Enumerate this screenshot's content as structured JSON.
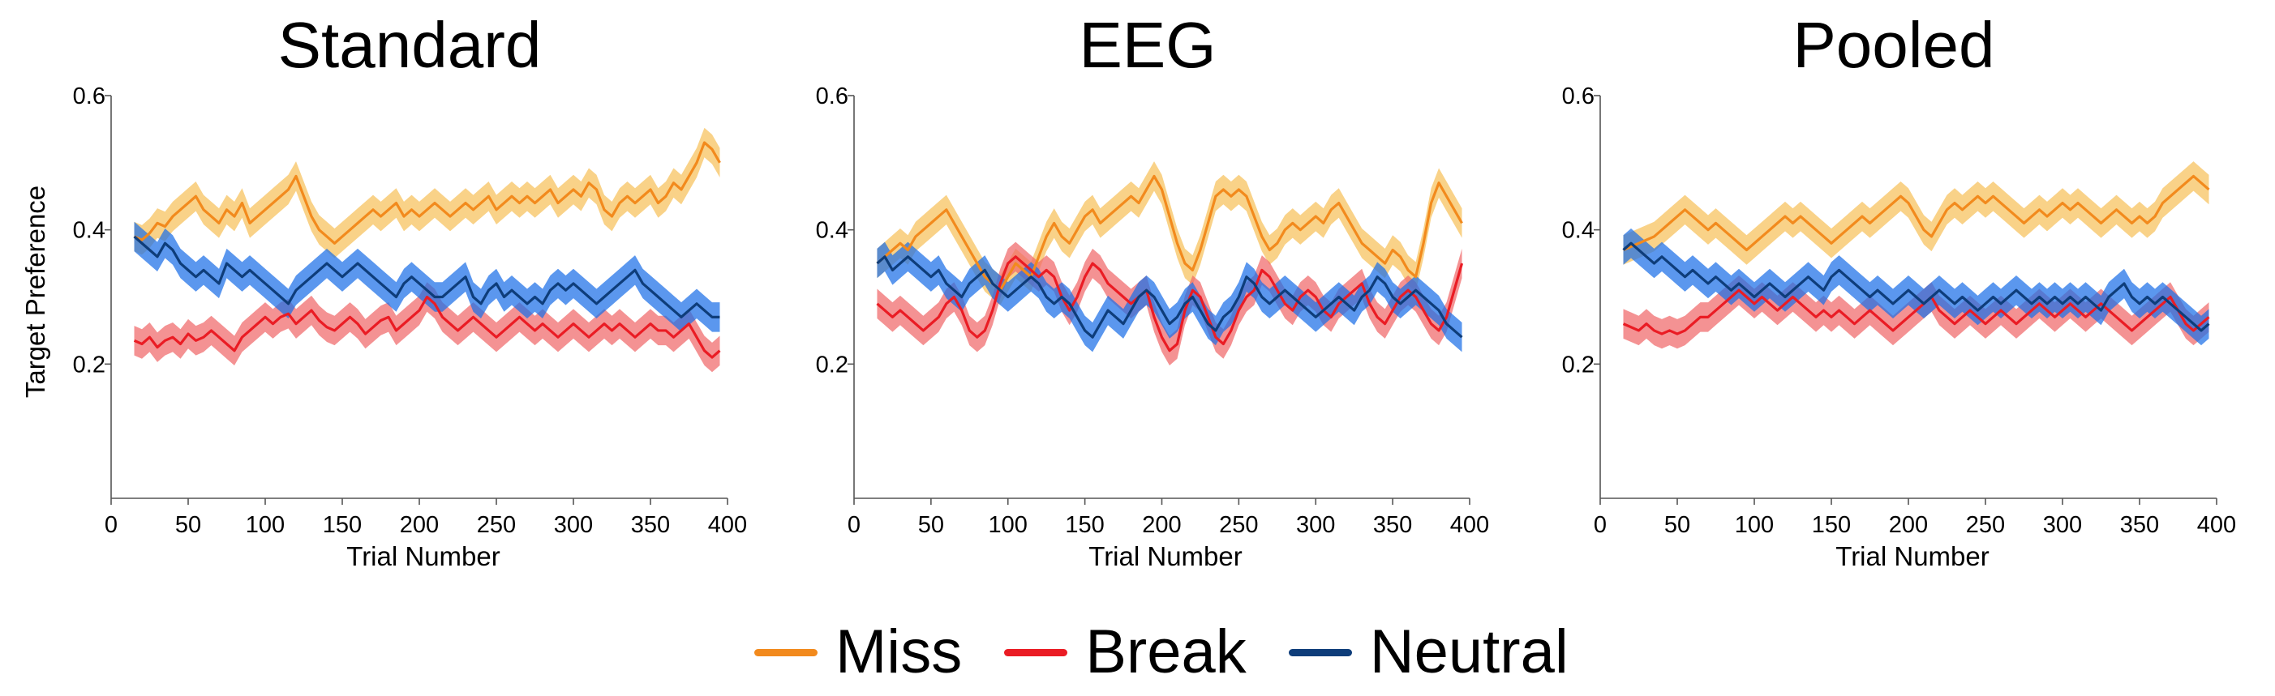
{
  "figure": {
    "ylabel": "Target Preference",
    "xlabel": "Trial Number",
    "legend": [
      {
        "name": "Miss",
        "color": "#f28a1d"
      },
      {
        "name": "Break",
        "color": "#ea1c24"
      },
      {
        "name": "Neutral",
        "color": "#0e3d7a"
      }
    ]
  },
  "panels": [
    {
      "title": "Standard"
    },
    {
      "title": "EEG"
    },
    {
      "title": "Pooled"
    }
  ],
  "chart_data": [
    {
      "type": "line",
      "title": "Standard",
      "xlabel": "Trial Number",
      "ylabel": "Target Preference",
      "xlim": [
        0,
        400
      ],
      "ylim": [
        0,
        0.6
      ],
      "xticks": [
        0,
        50,
        100,
        150,
        200,
        250,
        300,
        350,
        400
      ],
      "yticks": [
        0.2,
        0.4,
        0.6
      ],
      "grid": false,
      "x": [
        15,
        20,
        25,
        30,
        35,
        40,
        45,
        50,
        55,
        60,
        65,
        70,
        75,
        80,
        85,
        90,
        95,
        100,
        105,
        110,
        115,
        120,
        125,
        130,
        135,
        140,
        145,
        150,
        155,
        160,
        165,
        170,
        175,
        180,
        185,
        190,
        195,
        200,
        205,
        210,
        215,
        220,
        225,
        230,
        235,
        240,
        245,
        250,
        255,
        260,
        265,
        270,
        275,
        280,
        285,
        290,
        295,
        300,
        305,
        310,
        315,
        320,
        325,
        330,
        335,
        340,
        345,
        350,
        355,
        360,
        365,
        370,
        375,
        380,
        385,
        390,
        395
      ],
      "series": [
        {
          "name": "Miss",
          "color": "#f28a1d",
          "band_color": "#f7c05a",
          "values": [
            0.39,
            0.385,
            0.395,
            0.41,
            0.405,
            0.42,
            0.43,
            0.44,
            0.45,
            0.43,
            0.42,
            0.41,
            0.43,
            0.42,
            0.44,
            0.41,
            0.42,
            0.43,
            0.44,
            0.45,
            0.46,
            0.48,
            0.45,
            0.42,
            0.4,
            0.39,
            0.38,
            0.39,
            0.4,
            0.41,
            0.42,
            0.43,
            0.42,
            0.43,
            0.44,
            0.42,
            0.43,
            0.42,
            0.43,
            0.44,
            0.43,
            0.42,
            0.43,
            0.44,
            0.43,
            0.44,
            0.45,
            0.43,
            0.44,
            0.45,
            0.44,
            0.45,
            0.44,
            0.45,
            0.46,
            0.44,
            0.45,
            0.46,
            0.45,
            0.47,
            0.46,
            0.43,
            0.42,
            0.44,
            0.45,
            0.44,
            0.45,
            0.46,
            0.44,
            0.45,
            0.47,
            0.46,
            0.48,
            0.5,
            0.53,
            0.52,
            0.5
          ]
        },
        {
          "name": "Break",
          "color": "#ea1c24",
          "band_color": "#f0686a",
          "values": [
            0.235,
            0.23,
            0.24,
            0.225,
            0.235,
            0.24,
            0.23,
            0.245,
            0.235,
            0.24,
            0.25,
            0.24,
            0.23,
            0.22,
            0.24,
            0.25,
            0.26,
            0.27,
            0.26,
            0.27,
            0.275,
            0.26,
            0.27,
            0.28,
            0.265,
            0.255,
            0.25,
            0.26,
            0.27,
            0.26,
            0.245,
            0.255,
            0.265,
            0.27,
            0.25,
            0.26,
            0.27,
            0.28,
            0.3,
            0.29,
            0.27,
            0.26,
            0.25,
            0.26,
            0.27,
            0.26,
            0.25,
            0.24,
            0.25,
            0.26,
            0.27,
            0.26,
            0.25,
            0.26,
            0.25,
            0.24,
            0.25,
            0.26,
            0.25,
            0.24,
            0.25,
            0.26,
            0.25,
            0.26,
            0.25,
            0.24,
            0.25,
            0.26,
            0.25,
            0.25,
            0.24,
            0.25,
            0.26,
            0.24,
            0.22,
            0.21,
            0.22
          ]
        },
        {
          "name": "Neutral",
          "color": "#0e3d7a",
          "band_color": "#1c6fe8",
          "values": [
            0.39,
            0.38,
            0.37,
            0.36,
            0.38,
            0.37,
            0.35,
            0.34,
            0.33,
            0.34,
            0.33,
            0.32,
            0.35,
            0.34,
            0.33,
            0.34,
            0.33,
            0.32,
            0.31,
            0.3,
            0.29,
            0.31,
            0.32,
            0.33,
            0.34,
            0.35,
            0.34,
            0.33,
            0.34,
            0.35,
            0.34,
            0.33,
            0.32,
            0.31,
            0.3,
            0.32,
            0.33,
            0.32,
            0.31,
            0.3,
            0.3,
            0.31,
            0.32,
            0.33,
            0.3,
            0.29,
            0.31,
            0.32,
            0.3,
            0.31,
            0.3,
            0.29,
            0.3,
            0.29,
            0.31,
            0.32,
            0.31,
            0.32,
            0.31,
            0.3,
            0.29,
            0.3,
            0.31,
            0.32,
            0.33,
            0.34,
            0.32,
            0.31,
            0.3,
            0.29,
            0.28,
            0.27,
            0.28,
            0.29,
            0.28,
            0.27,
            0.27
          ]
        }
      ]
    },
    {
      "type": "line",
      "title": "EEG",
      "xlabel": "Trial Number",
      "ylabel": "",
      "xlim": [
        0,
        400
      ],
      "ylim": [
        0,
        0.6
      ],
      "xticks": [
        0,
        50,
        100,
        150,
        200,
        250,
        300,
        350,
        400
      ],
      "yticks": [
        0.2,
        0.4,
        0.6
      ],
      "grid": false,
      "x": [
        15,
        20,
        25,
        30,
        35,
        40,
        45,
        50,
        55,
        60,
        65,
        70,
        75,
        80,
        85,
        90,
        95,
        100,
        105,
        110,
        115,
        120,
        125,
        130,
        135,
        140,
        145,
        150,
        155,
        160,
        165,
        170,
        175,
        180,
        185,
        190,
        195,
        200,
        205,
        210,
        215,
        220,
        225,
        230,
        235,
        240,
        245,
        250,
        255,
        260,
        265,
        270,
        275,
        280,
        285,
        290,
        295,
        300,
        305,
        310,
        315,
        320,
        325,
        330,
        335,
        340,
        345,
        350,
        355,
        360,
        365,
        370,
        375,
        380,
        385,
        390,
        395
      ],
      "series": [
        {
          "name": "Miss",
          "color": "#f28a1d",
          "band_color": "#f7c05a",
          "values": [
            0.35,
            0.36,
            0.37,
            0.38,
            0.37,
            0.39,
            0.4,
            0.41,
            0.42,
            0.43,
            0.41,
            0.39,
            0.37,
            0.35,
            0.33,
            0.32,
            0.31,
            0.33,
            0.35,
            0.34,
            0.33,
            0.36,
            0.39,
            0.41,
            0.39,
            0.38,
            0.4,
            0.42,
            0.43,
            0.41,
            0.42,
            0.43,
            0.44,
            0.45,
            0.44,
            0.46,
            0.48,
            0.46,
            0.42,
            0.38,
            0.35,
            0.34,
            0.37,
            0.41,
            0.45,
            0.46,
            0.45,
            0.46,
            0.45,
            0.42,
            0.39,
            0.37,
            0.38,
            0.4,
            0.41,
            0.4,
            0.41,
            0.42,
            0.41,
            0.43,
            0.44,
            0.42,
            0.4,
            0.38,
            0.37,
            0.36,
            0.35,
            0.37,
            0.36,
            0.34,
            0.33,
            0.38,
            0.44,
            0.47,
            0.45,
            0.43,
            0.41
          ]
        },
        {
          "name": "Break",
          "color": "#ea1c24",
          "band_color": "#f0686a",
          "values": [
            0.29,
            0.28,
            0.27,
            0.28,
            0.27,
            0.26,
            0.25,
            0.26,
            0.27,
            0.29,
            0.3,
            0.28,
            0.25,
            0.24,
            0.25,
            0.28,
            0.32,
            0.35,
            0.36,
            0.35,
            0.34,
            0.33,
            0.34,
            0.33,
            0.3,
            0.28,
            0.3,
            0.33,
            0.35,
            0.34,
            0.32,
            0.31,
            0.3,
            0.29,
            0.3,
            0.31,
            0.27,
            0.24,
            0.22,
            0.23,
            0.28,
            0.31,
            0.3,
            0.27,
            0.24,
            0.23,
            0.25,
            0.28,
            0.3,
            0.31,
            0.34,
            0.33,
            0.31,
            0.29,
            0.28,
            0.3,
            0.31,
            0.3,
            0.28,
            0.27,
            0.29,
            0.3,
            0.31,
            0.32,
            0.29,
            0.27,
            0.26,
            0.28,
            0.3,
            0.31,
            0.3,
            0.28,
            0.26,
            0.25,
            0.27,
            0.31,
            0.35
          ]
        },
        {
          "name": "Neutral",
          "color": "#0e3d7a",
          "band_color": "#1c6fe8",
          "values": [
            0.35,
            0.36,
            0.34,
            0.35,
            0.36,
            0.35,
            0.34,
            0.33,
            0.34,
            0.32,
            0.31,
            0.3,
            0.32,
            0.33,
            0.34,
            0.32,
            0.31,
            0.3,
            0.31,
            0.32,
            0.33,
            0.32,
            0.3,
            0.29,
            0.3,
            0.29,
            0.27,
            0.25,
            0.24,
            0.26,
            0.28,
            0.27,
            0.26,
            0.28,
            0.3,
            0.31,
            0.3,
            0.28,
            0.26,
            0.27,
            0.29,
            0.3,
            0.28,
            0.26,
            0.25,
            0.27,
            0.28,
            0.3,
            0.33,
            0.32,
            0.3,
            0.29,
            0.3,
            0.31,
            0.3,
            0.29,
            0.28,
            0.27,
            0.28,
            0.29,
            0.3,
            0.29,
            0.28,
            0.3,
            0.31,
            0.33,
            0.32,
            0.3,
            0.29,
            0.3,
            0.31,
            0.3,
            0.29,
            0.28,
            0.26,
            0.25,
            0.24
          ]
        }
      ]
    },
    {
      "type": "line",
      "title": "Pooled",
      "xlabel": "Trial Number",
      "ylabel": "",
      "xlim": [
        0,
        400
      ],
      "ylim": [
        0,
        0.6
      ],
      "xticks": [
        0,
        50,
        100,
        150,
        200,
        250,
        300,
        350,
        400
      ],
      "yticks": [
        0.2,
        0.4,
        0.6
      ],
      "grid": false,
      "x": [
        15,
        20,
        25,
        30,
        35,
        40,
        45,
        50,
        55,
        60,
        65,
        70,
        75,
        80,
        85,
        90,
        95,
        100,
        105,
        110,
        115,
        120,
        125,
        130,
        135,
        140,
        145,
        150,
        155,
        160,
        165,
        170,
        175,
        180,
        185,
        190,
        195,
        200,
        205,
        210,
        215,
        220,
        225,
        230,
        235,
        240,
        245,
        250,
        255,
        260,
        265,
        270,
        275,
        280,
        285,
        290,
        295,
        300,
        305,
        310,
        315,
        320,
        325,
        330,
        335,
        340,
        345,
        350,
        355,
        360,
        365,
        370,
        375,
        380,
        385,
        390,
        395
      ],
      "series": [
        {
          "name": "Miss",
          "color": "#f28a1d",
          "band_color": "#f7c05a",
          "values": [
            0.37,
            0.375,
            0.38,
            0.385,
            0.39,
            0.4,
            0.41,
            0.42,
            0.43,
            0.42,
            0.41,
            0.4,
            0.41,
            0.4,
            0.39,
            0.38,
            0.37,
            0.38,
            0.39,
            0.4,
            0.41,
            0.42,
            0.41,
            0.42,
            0.41,
            0.4,
            0.39,
            0.38,
            0.39,
            0.4,
            0.41,
            0.42,
            0.41,
            0.42,
            0.43,
            0.44,
            0.45,
            0.44,
            0.42,
            0.4,
            0.39,
            0.41,
            0.43,
            0.44,
            0.43,
            0.44,
            0.45,
            0.44,
            0.45,
            0.44,
            0.43,
            0.42,
            0.41,
            0.42,
            0.43,
            0.42,
            0.43,
            0.44,
            0.43,
            0.44,
            0.43,
            0.42,
            0.41,
            0.42,
            0.43,
            0.42,
            0.41,
            0.42,
            0.41,
            0.42,
            0.44,
            0.45,
            0.46,
            0.47,
            0.48,
            0.47,
            0.46
          ]
        },
        {
          "name": "Break",
          "color": "#ea1c24",
          "band_color": "#f0686a",
          "values": [
            0.26,
            0.255,
            0.25,
            0.26,
            0.25,
            0.245,
            0.25,
            0.245,
            0.25,
            0.26,
            0.27,
            0.27,
            0.28,
            0.29,
            0.3,
            0.31,
            0.3,
            0.29,
            0.3,
            0.29,
            0.28,
            0.29,
            0.3,
            0.29,
            0.28,
            0.27,
            0.28,
            0.27,
            0.28,
            0.27,
            0.26,
            0.27,
            0.28,
            0.27,
            0.26,
            0.25,
            0.26,
            0.27,
            0.28,
            0.29,
            0.3,
            0.28,
            0.27,
            0.26,
            0.27,
            0.28,
            0.27,
            0.26,
            0.27,
            0.28,
            0.27,
            0.26,
            0.27,
            0.28,
            0.29,
            0.28,
            0.27,
            0.28,
            0.29,
            0.28,
            0.27,
            0.28,
            0.29,
            0.28,
            0.27,
            0.26,
            0.25,
            0.26,
            0.27,
            0.28,
            0.29,
            0.3,
            0.28,
            0.26,
            0.25,
            0.26,
            0.27
          ]
        },
        {
          "name": "Neutral",
          "color": "#0e3d7a",
          "band_color": "#1c6fe8",
          "values": [
            0.37,
            0.38,
            0.37,
            0.36,
            0.35,
            0.36,
            0.35,
            0.34,
            0.33,
            0.34,
            0.33,
            0.32,
            0.33,
            0.32,
            0.31,
            0.32,
            0.31,
            0.3,
            0.31,
            0.32,
            0.31,
            0.3,
            0.31,
            0.32,
            0.33,
            0.32,
            0.31,
            0.33,
            0.34,
            0.33,
            0.32,
            0.31,
            0.3,
            0.31,
            0.3,
            0.29,
            0.3,
            0.31,
            0.3,
            0.29,
            0.3,
            0.31,
            0.3,
            0.29,
            0.3,
            0.29,
            0.28,
            0.29,
            0.3,
            0.29,
            0.3,
            0.31,
            0.3,
            0.29,
            0.3,
            0.29,
            0.3,
            0.29,
            0.3,
            0.29,
            0.3,
            0.29,
            0.28,
            0.3,
            0.31,
            0.32,
            0.3,
            0.29,
            0.3,
            0.29,
            0.3,
            0.29,
            0.28,
            0.27,
            0.26,
            0.25,
            0.26
          ]
        }
      ]
    }
  ]
}
